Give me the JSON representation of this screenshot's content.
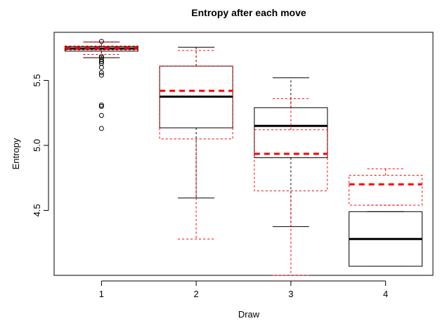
{
  "chart_data": {
    "type": "boxplot",
    "title": "Entropy after each move",
    "xlabel": "Draw",
    "ylabel": "Entropy",
    "categories": [
      "1",
      "2",
      "3",
      "4"
    ],
    "ylim": [
      4.0,
      5.87
    ],
    "yticks": [
      {
        "value": 4.5,
        "label": "4.5"
      },
      {
        "value": 5.0,
        "label": "5.0"
      },
      {
        "value": 5.5,
        "label": "5.5"
      }
    ],
    "grid": false,
    "series": [
      {
        "color": "#000000",
        "line_style": "solid",
        "boxes": [
          {
            "whisker_low": 5.675,
            "q1": 5.725,
            "median": 5.745,
            "q3": 5.76,
            "whisker_high": 5.795,
            "outliers": [
              5.8,
              5.685,
              5.675,
              5.66,
              5.645,
              5.63,
              5.6,
              5.56,
              5.54,
              5.31,
              5.3,
              5.23,
              5.13
            ]
          },
          {
            "whisker_low": 4.595,
            "q1": 5.135,
            "median": 5.375,
            "q3": 5.61,
            "whisker_high": 5.755,
            "outliers": []
          },
          {
            "whisker_low": 4.375,
            "q1": 4.905,
            "median": 5.15,
            "q3": 5.29,
            "whisker_high": 5.52,
            "outliers": []
          },
          {
            "whisker_low": 4.07,
            "q1": 4.07,
            "median": 4.28,
            "q3": 4.49,
            "whisker_high": 4.49,
            "outliers": []
          }
        ]
      },
      {
        "color": "#ff0000",
        "line_style": "dashed",
        "boxes": [
          {
            "whisker_low": 5.7,
            "q1": 5.735,
            "median": 5.75,
            "q3": 5.765,
            "whisker_high": 5.795,
            "outliers": []
          },
          {
            "whisker_low": 4.28,
            "q1": 5.05,
            "median": 5.42,
            "q3": 5.61,
            "whisker_high": 5.73,
            "outliers": []
          },
          {
            "whisker_low": 4.0,
            "q1": 4.65,
            "median": 4.935,
            "q3": 5.12,
            "whisker_high": 5.36,
            "outliers": []
          },
          {
            "whisker_low": 4.54,
            "q1": 4.54,
            "median": 4.7,
            "q3": 4.77,
            "whisker_high": 4.82,
            "outliers": []
          }
        ]
      }
    ]
  }
}
